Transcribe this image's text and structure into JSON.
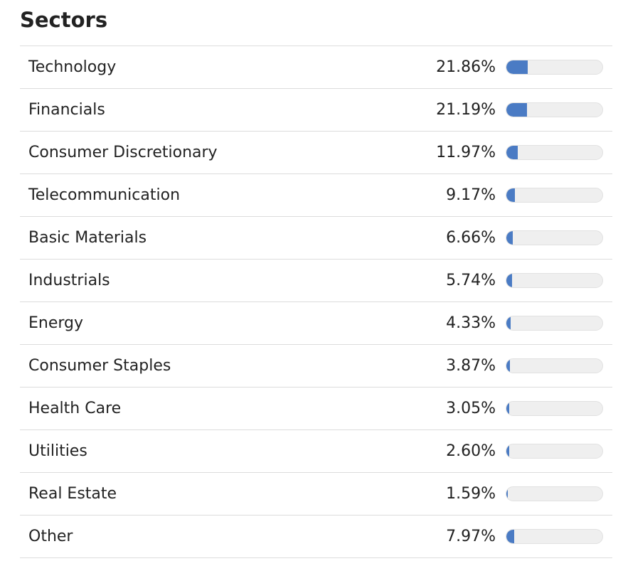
{
  "title": "Sectors",
  "accent_color": "#4a7bc4",
  "track_color": "#efefef",
  "sectors": [
    {
      "name": "Technology",
      "percent": "21.86%",
      "value": 21.86
    },
    {
      "name": "Financials",
      "percent": "21.19%",
      "value": 21.19
    },
    {
      "name": "Consumer Discretionary",
      "percent": "11.97%",
      "value": 11.97
    },
    {
      "name": "Telecommunication",
      "percent": "9.17%",
      "value": 9.17
    },
    {
      "name": "Basic Materials",
      "percent": "6.66%",
      "value": 6.66
    },
    {
      "name": "Industrials",
      "percent": "5.74%",
      "value": 5.74
    },
    {
      "name": "Energy",
      "percent": "4.33%",
      "value": 4.33
    },
    {
      "name": "Consumer Staples",
      "percent": "3.87%",
      "value": 3.87
    },
    {
      "name": "Health Care",
      "percent": "3.05%",
      "value": 3.05
    },
    {
      "name": "Utilities",
      "percent": "2.60%",
      "value": 2.6
    },
    {
      "name": "Real Estate",
      "percent": "1.59%",
      "value": 1.59
    },
    {
      "name": "Other",
      "percent": "7.97%",
      "value": 7.97
    }
  ]
}
